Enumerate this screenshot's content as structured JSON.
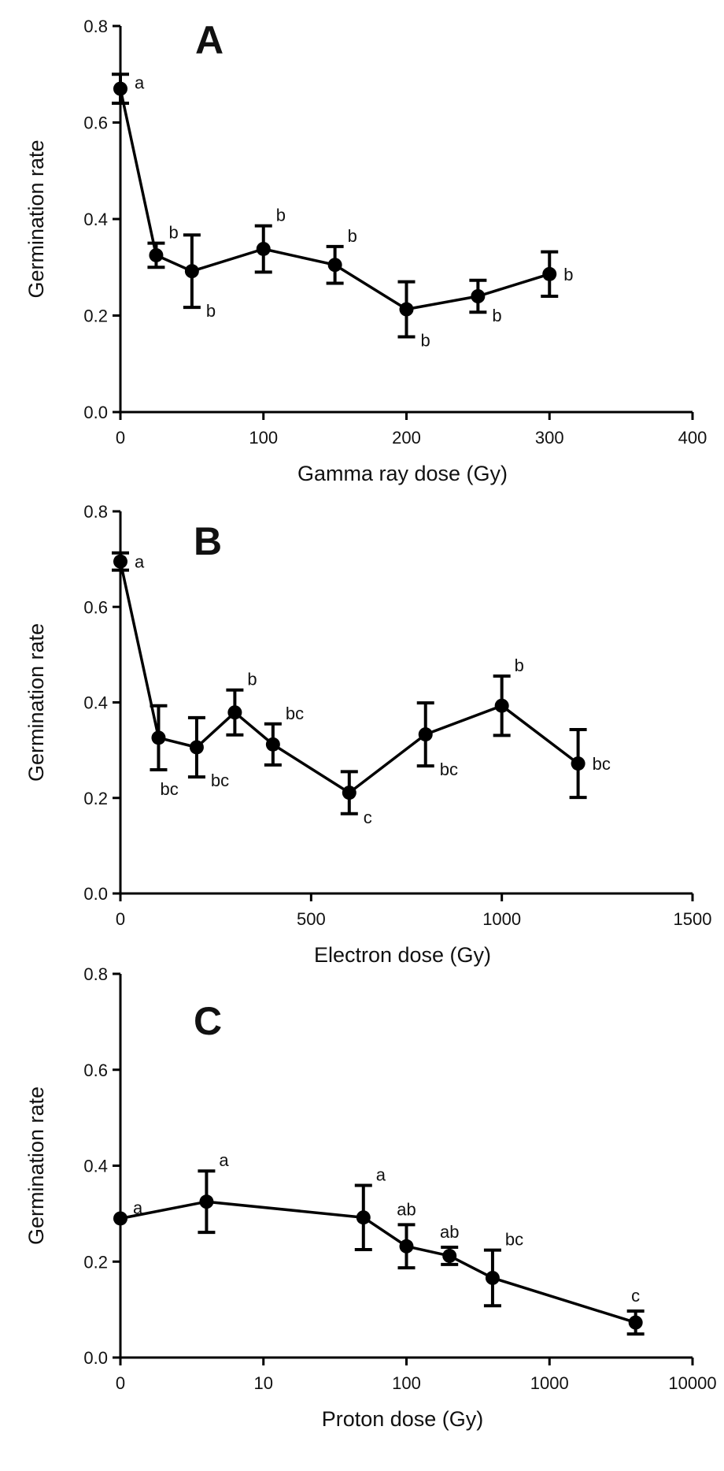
{
  "chart_data": [
    {
      "type": "line",
      "panel_label": "A",
      "xlabel": "Gamma ray dose (Gy)",
      "ylabel": "Germination rate",
      "xscale": "linear",
      "xlim": [
        0,
        400
      ],
      "ylim": [
        0,
        0.8
      ],
      "x_ticks": [
        0,
        100,
        200,
        300,
        400
      ],
      "x_tick_labels": [
        "0",
        "100",
        "200",
        "300",
        "400"
      ],
      "y_ticks": [
        0,
        0.2,
        0.4,
        0.6,
        0.8
      ],
      "y_tick_labels": [
        "0.0",
        "0.2",
        "0.4",
        "0.6",
        "0.8"
      ],
      "grid": false,
      "series": [
        {
          "points": [
            {
              "x": 0,
              "y": 0.67,
              "err": 0.03,
              "label": "a",
              "label_pos": "right-up"
            },
            {
              "x": 25,
              "y": 0.325,
              "err": 0.025,
              "label": "b",
              "label_pos": "above-right"
            },
            {
              "x": 50,
              "y": 0.292,
              "err": 0.075,
              "label": "b",
              "label_pos": "below-right"
            },
            {
              "x": 100,
              "y": 0.338,
              "err": 0.048,
              "label": "b",
              "label_pos": "above-right"
            },
            {
              "x": 150,
              "y": 0.305,
              "err": 0.038,
              "label": "b",
              "label_pos": "above-right"
            },
            {
              "x": 200,
              "y": 0.213,
              "err": 0.057,
              "label": "b",
              "label_pos": "below-right"
            },
            {
              "x": 250,
              "y": 0.24,
              "err": 0.033,
              "label": "b",
              "label_pos": "below-right"
            },
            {
              "x": 300,
              "y": 0.286,
              "err": 0.046,
              "label": "b",
              "label_pos": "right"
            }
          ]
        }
      ]
    },
    {
      "type": "line",
      "panel_label": "B",
      "xlabel": "Electron dose (Gy)",
      "ylabel": "Germination rate",
      "xscale": "linear",
      "xlim": [
        0,
        1500
      ],
      "ylim": [
        0,
        0.8
      ],
      "x_ticks": [
        0,
        500,
        1000,
        1500
      ],
      "x_tick_labels": [
        "0",
        "500",
        "1000",
        "1500"
      ],
      "y_ticks": [
        0,
        0.2,
        0.4,
        0.6,
        0.8
      ],
      "y_tick_labels": [
        "0.0",
        "0.2",
        "0.4",
        "0.6",
        "0.8"
      ],
      "grid": false,
      "series": [
        {
          "points": [
            {
              "x": 0,
              "y": 0.695,
              "err": 0.018,
              "label": "a",
              "label_pos": "right"
            },
            {
              "x": 100,
              "y": 0.326,
              "err": 0.067,
              "label": "bc",
              "label_pos": "below"
            },
            {
              "x": 200,
              "y": 0.306,
              "err": 0.062,
              "label": "bc",
              "label_pos": "below-right"
            },
            {
              "x": 300,
              "y": 0.379,
              "err": 0.047,
              "label": "b",
              "label_pos": "above-right"
            },
            {
              "x": 400,
              "y": 0.312,
              "err": 0.043,
              "label": "bc",
              "label_pos": "above-right"
            },
            {
              "x": 600,
              "y": 0.211,
              "err": 0.044,
              "label": "c",
              "label_pos": "below-right"
            },
            {
              "x": 800,
              "y": 0.333,
              "err": 0.066,
              "label": "bc",
              "label_pos": "below-right"
            },
            {
              "x": 1000,
              "y": 0.393,
              "err": 0.062,
              "label": "b",
              "label_pos": "above-right"
            },
            {
              "x": 1200,
              "y": 0.272,
              "err": 0.071,
              "label": "bc",
              "label_pos": "right"
            }
          ]
        }
      ]
    },
    {
      "type": "line",
      "panel_label": "C",
      "xlabel": "Proton dose (Gy)",
      "ylabel": "Germination rate",
      "xscale": "log",
      "x_ticks": [
        1,
        10,
        100,
        1000,
        10000
      ],
      "x_tick_labels": [
        "0",
        "10",
        "100",
        "1000",
        "10000"
      ],
      "xlim": [
        1,
        10000
      ],
      "ylim": [
        0,
        0.8
      ],
      "y_ticks": [
        0,
        0.2,
        0.4,
        0.6,
        0.8
      ],
      "y_tick_labels": [
        "0.0",
        "0.2",
        "0.4",
        "0.6",
        "0.8"
      ],
      "grid": false,
      "series": [
        {
          "points": [
            {
              "x": 1,
              "y": 0.29,
              "err": 0,
              "label": "a",
              "label_pos": "above-right"
            },
            {
              "x": 4,
              "y": 0.325,
              "err": 0.064,
              "label": "a",
              "label_pos": "above-right"
            },
            {
              "x": 50,
              "y": 0.292,
              "err": 0.067,
              "label": "a",
              "label_pos": "above-right"
            },
            {
              "x": 100,
              "y": 0.232,
              "err": 0.045,
              "label": "ab",
              "label_pos": "above"
            },
            {
              "x": 200,
              "y": 0.212,
              "err": 0.018,
              "label": "ab",
              "label_pos": "above"
            },
            {
              "x": 400,
              "y": 0.166,
              "err": 0.058,
              "label": "bc",
              "label_pos": "above-right"
            },
            {
              "x": 4000,
              "y": 0.073,
              "err": 0.024,
              "label": "c",
              "label_pos": "above"
            }
          ]
        }
      ]
    }
  ]
}
